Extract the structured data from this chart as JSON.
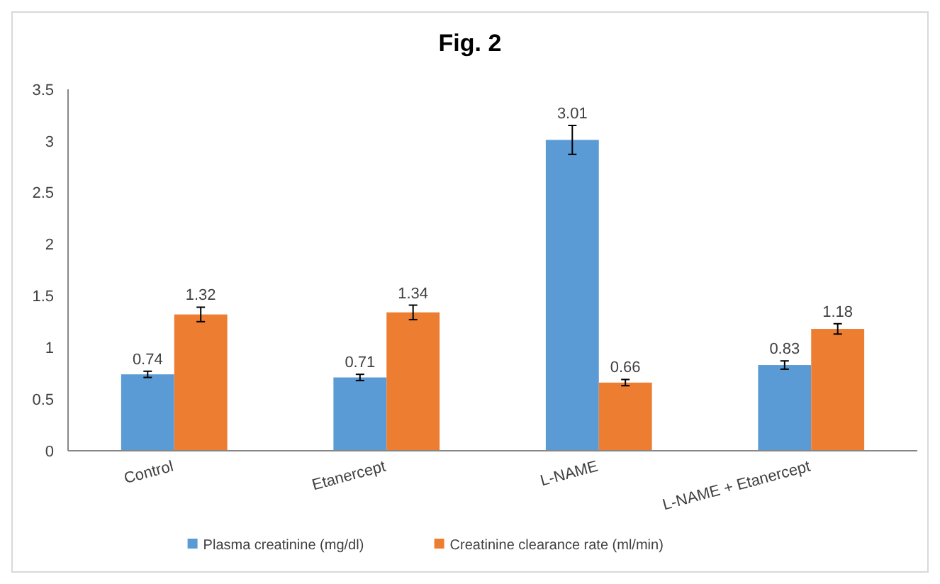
{
  "chart_data": {
    "type": "bar",
    "title": "Fig. 2",
    "categories": [
      "Control",
      "Etanercept",
      "L-NAME",
      "L-NAME + Etanercept"
    ],
    "series": [
      {
        "name": "Plasma creatinine (mg/dl)",
        "color": "#5b9bd5",
        "values": [
          0.74,
          0.71,
          3.01,
          0.83
        ],
        "errors": [
          0.03,
          0.03,
          0.14,
          0.04
        ]
      },
      {
        "name": "Creatinine clearance rate (ml/min)",
        "color": "#ed7d31",
        "values": [
          1.32,
          1.34,
          0.66,
          1.18
        ],
        "errors": [
          0.07,
          0.07,
          0.03,
          0.05
        ]
      }
    ],
    "ylim": [
      0,
      3.5
    ],
    "yticks": [
      0,
      0.5,
      1,
      1.5,
      2,
      2.5,
      3,
      3.5
    ],
    "data_labels": true,
    "legend": "bottom",
    "grid": false
  }
}
